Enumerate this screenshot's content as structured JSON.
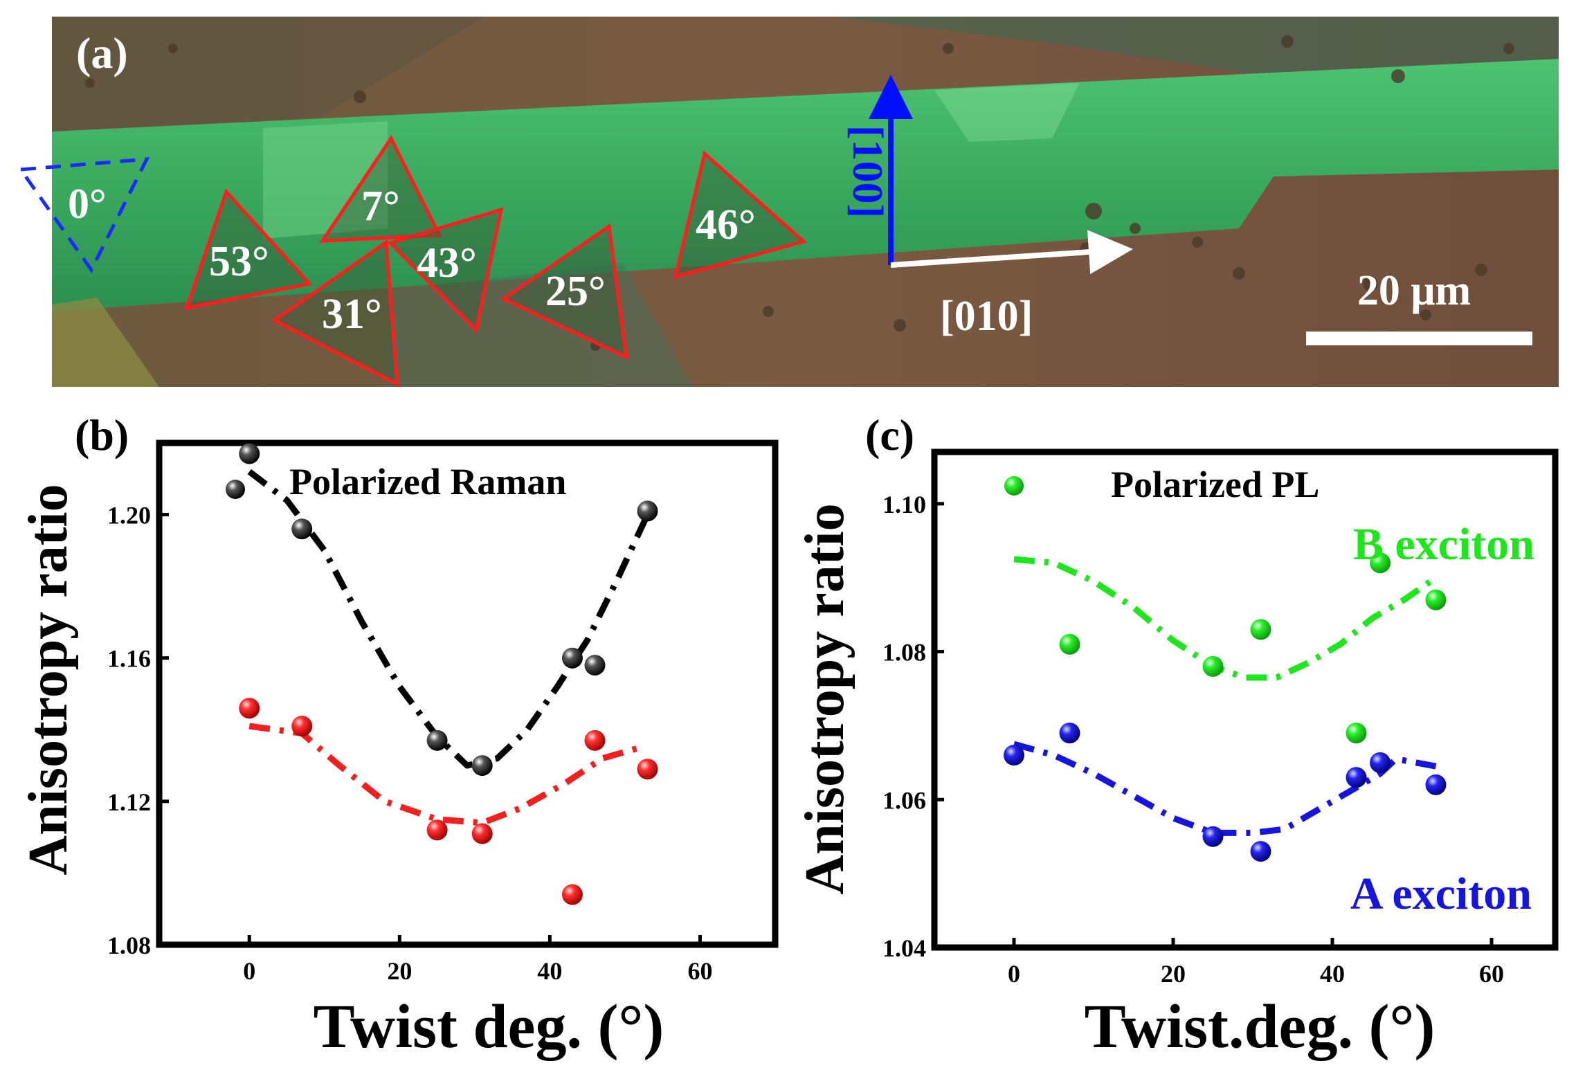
{
  "panel_a": {
    "letter": "(a)",
    "angles": [
      {
        "label": "0°",
        "style": "dashed-blue"
      },
      {
        "label": "53°",
        "style": "red"
      },
      {
        "label": "7°",
        "style": "red"
      },
      {
        "label": "31°",
        "style": "red"
      },
      {
        "label": "43°",
        "style": "red"
      },
      {
        "label": "25°",
        "style": "red"
      },
      {
        "label": "46°",
        "style": "red"
      }
    ],
    "dir_vertical": "[100]",
    "dir_horizontal": "[010]",
    "scale_bar": "20 μm"
  },
  "chart_data": [
    {
      "panel": "(b)",
      "type": "scatter",
      "legend": "Polarized Raman",
      "xlabel": "Twist deg. (°)",
      "ylabel": "Anisotropy ratio",
      "xlim": [
        -12,
        70
      ],
      "ylim": [
        1.08,
        1.22
      ],
      "xticks": [
        0,
        20,
        40,
        60
      ],
      "yticks": [
        1.08,
        1.12,
        1.16,
        1.2
      ],
      "xtick_labels": [
        "0",
        "20",
        "40",
        "60"
      ],
      "ytick_labels": [
        "1.08",
        "1.12",
        "1.16",
        "1.20"
      ],
      "series": [
        {
          "name": "black",
          "color": "#000000",
          "x": [
            0,
            7,
            25,
            31,
            43,
            46,
            53
          ],
          "y": [
            1.217,
            1.196,
            1.137,
            1.13,
            1.16,
            1.158,
            1.201
          ],
          "fit_x": [
            0,
            5,
            10,
            15,
            20,
            25,
            29,
            33,
            37,
            41,
            45,
            49,
            53
          ],
          "fit_y": [
            1.212,
            1.204,
            1.19,
            1.17,
            1.152,
            1.138,
            1.13,
            1.132,
            1.14,
            1.152,
            1.165,
            1.182,
            1.2
          ]
        },
        {
          "name": "red",
          "color": "#ee2020",
          "x": [
            0,
            7,
            25,
            31,
            43,
            46,
            53
          ],
          "y": [
            1.146,
            1.141,
            1.112,
            1.111,
            1.094,
            1.137,
            1.129
          ],
          "fit_x": [
            0,
            7,
            12,
            18,
            25,
            31,
            36,
            42,
            47,
            52
          ],
          "fit_y": [
            1.141,
            1.139,
            1.13,
            1.12,
            1.115,
            1.114,
            1.118,
            1.125,
            1.132,
            1.135
          ]
        }
      ]
    },
    {
      "panel": "(c)",
      "type": "scatter",
      "legend": "Polarized PL",
      "xlabel": "Twist.deg. (°)",
      "ylabel": "Anisotropy ratio",
      "xlim": [
        -10,
        68
      ],
      "ylim": [
        1.04,
        1.107
      ],
      "xticks": [
        0,
        20,
        40,
        60
      ],
      "yticks": [
        1.04,
        1.06,
        1.08,
        1.1
      ],
      "xtick_labels": [
        "0",
        "20",
        "40",
        "60"
      ],
      "ytick_labels": [
        "1.04",
        "1.06",
        "1.08",
        "1.10"
      ],
      "series": [
        {
          "name": "B exciton",
          "color": "#1ee51e",
          "x": [
            7,
            25,
            31,
            43,
            46,
            53
          ],
          "y": [
            1.081,
            1.078,
            1.083,
            1.069,
            1.092,
            1.087
          ],
          "fit_x": [
            0,
            5,
            10,
            15,
            20,
            25,
            29,
            33,
            37,
            41,
            45,
            49,
            53
          ],
          "fit_y": [
            1.0925,
            1.092,
            1.0895,
            1.086,
            1.0815,
            1.078,
            1.0765,
            1.0765,
            1.0785,
            1.081,
            1.0845,
            1.087,
            1.09
          ]
        },
        {
          "name": "A exciton",
          "color": "#1515dd",
          "x": [
            0,
            7,
            25,
            31,
            43,
            46,
            53
          ],
          "y": [
            1.066,
            1.069,
            1.055,
            1.053,
            1.063,
            1.065,
            1.062
          ],
          "fit_x": [
            0,
            5,
            10,
            15,
            20,
            25,
            30,
            34,
            38,
            42,
            46,
            48,
            53
          ],
          "fit_y": [
            1.0675,
            1.066,
            1.0635,
            1.0605,
            1.0575,
            1.0555,
            1.0555,
            1.056,
            1.0585,
            1.061,
            1.0635,
            1.0655,
            1.0645
          ]
        }
      ],
      "labels": [
        "B exciton",
        "A exciton"
      ]
    }
  ]
}
